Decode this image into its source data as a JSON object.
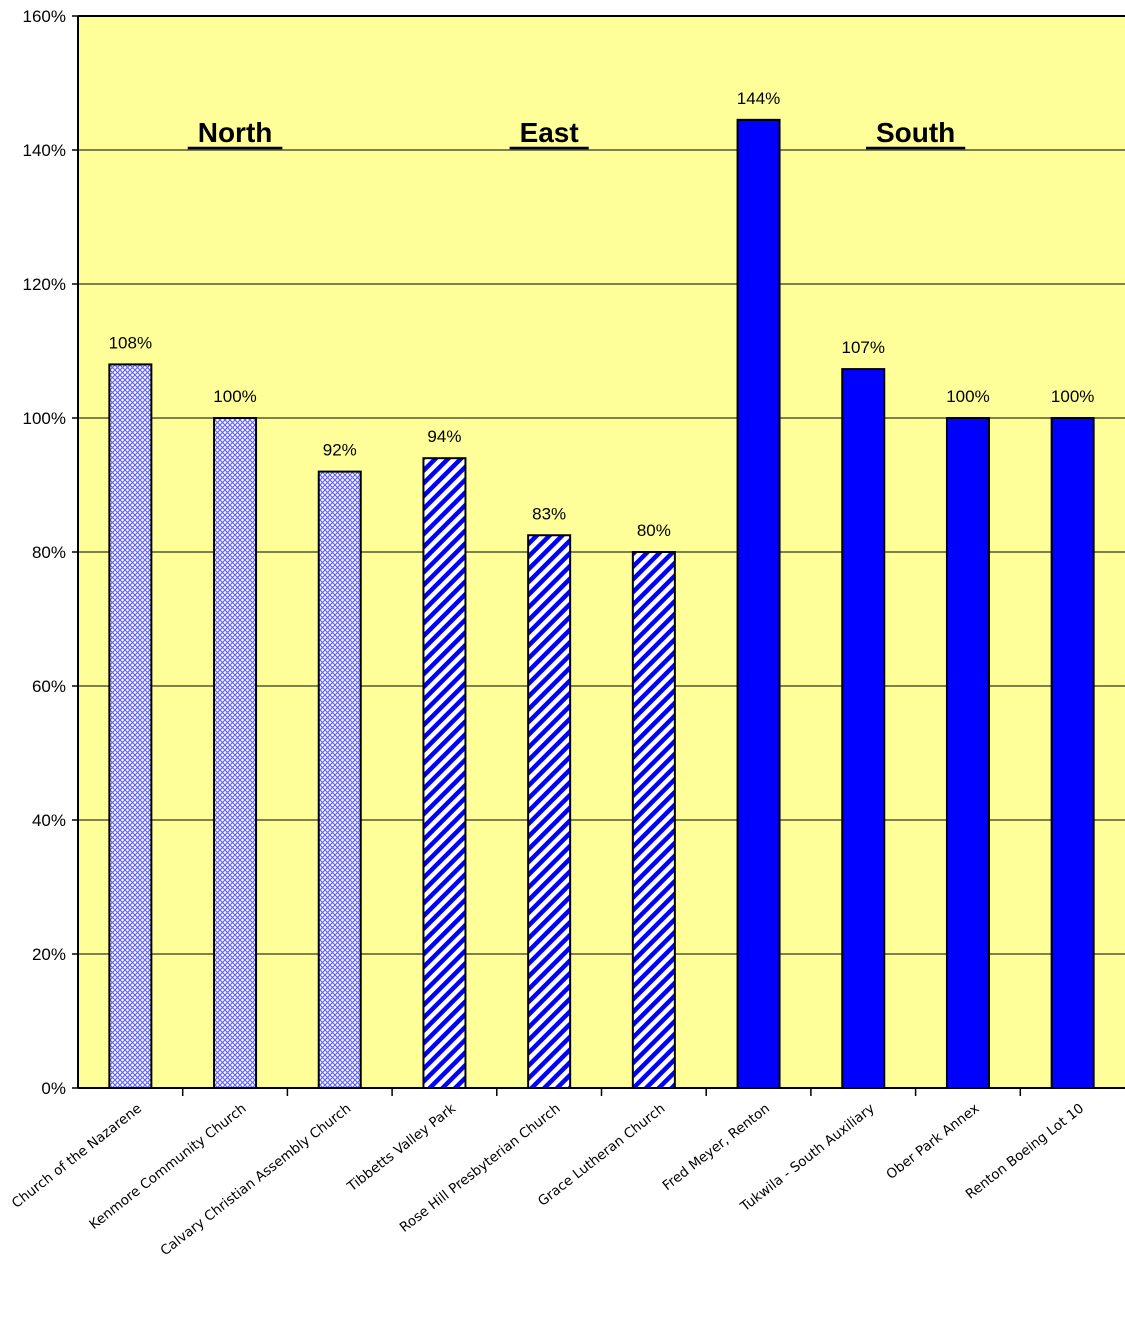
{
  "chart_data": {
    "type": "bar",
    "categories": [
      "Church of the Nazarene",
      "Kenmore Community Church",
      "Calvary Christian Assembly Church",
      "Tibbetts Valley Park",
      "Rose Hill Presbyterian Church",
      "Grace Lutheran Church",
      "Fred Meyer, Renton",
      "Tukwila - South Auxiliary",
      "Ober Park Annex",
      "Renton Boeing Lot 10"
    ],
    "values": [
      108,
      100,
      92,
      94,
      82.5,
      80,
      144.5,
      107.3,
      100,
      100
    ],
    "data_labels": [
      "108%",
      "100%",
      "92%",
      "94%",
      "83%",
      "80%",
      "144%",
      "107%",
      "100%",
      "100%"
    ],
    "groups": [
      "North",
      "North",
      "North",
      "East",
      "East",
      "East",
      "South",
      "South",
      "South",
      "South"
    ],
    "fills": [
      "crosshatch",
      "crosshatch",
      "crosshatch",
      "diagonal-stripe",
      "diagonal-stripe",
      "diagonal-stripe",
      "solid",
      "solid",
      "solid",
      "solid"
    ],
    "region_labels": [
      {
        "text": "North",
        "group": "North"
      },
      {
        "text": "East",
        "group": "East"
      },
      {
        "text": "South",
        "group": "South"
      }
    ],
    "ylim": [
      0,
      160
    ],
    "y_ticks": [
      0,
      20,
      40,
      60,
      80,
      100,
      120,
      140,
      160
    ],
    "y_tick_labels": [
      "0%",
      "20%",
      "40%",
      "60%",
      "80%",
      "100%",
      "120%",
      "140%",
      "160%"
    ],
    "grid": true,
    "title": "",
    "xlabel": "",
    "ylabel": ""
  },
  "colors": {
    "plot_background": "#FFFF99",
    "bar_blue": "#0000FF",
    "bar_light": "#9999FF",
    "gridline": "#000000"
  }
}
